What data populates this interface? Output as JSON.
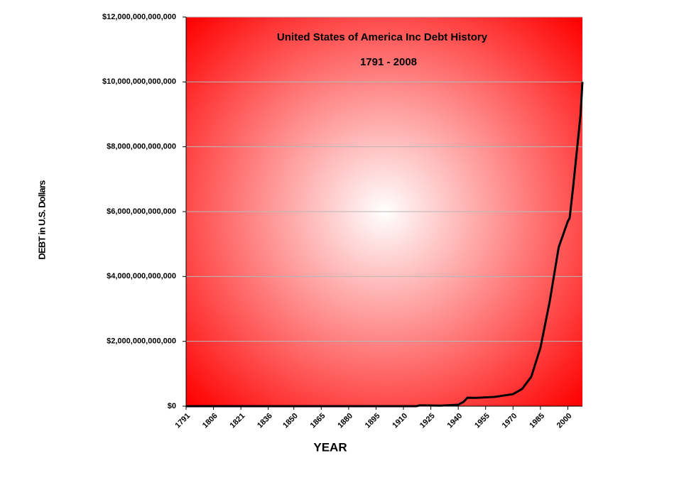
{
  "chart_data": {
    "type": "line",
    "title": "United States of America Inc Debt History",
    "subtitle": "1791 - 2008",
    "x_label": "YEAR",
    "y_label": "DEBT in U.S. Dollars",
    "x": [
      1791,
      1860,
      1900,
      1917,
      1919,
      1930,
      1940,
      1943,
      1945,
      1950,
      1960,
      1970,
      1975,
      1980,
      1985,
      1990,
      1995,
      2000,
      2001,
      2003,
      2005,
      2007,
      2008
    ],
    "series": [
      {
        "name": "Debt",
        "color": "#000000",
        "values": [
          0,
          0,
          0,
          0,
          25000000000,
          16000000000,
          43000000000,
          137000000000,
          260000000000,
          257000000000,
          286000000000,
          371000000000,
          533000000000,
          908000000000,
          1800000000000,
          3200000000000,
          4900000000000,
          5700000000000,
          5800000000000,
          6800000000000,
          7900000000000,
          9000000000000,
          10000000000000
        ]
      }
    ],
    "xlim": [
      1791,
      2008
    ],
    "xticks": [
      1791,
      1806,
      1821,
      1836,
      1850,
      1865,
      1880,
      1895,
      1910,
      1925,
      1940,
      1955,
      1970,
      1985,
      2000
    ],
    "ylim": [
      0,
      12000000000000
    ],
    "yticks": [
      {
        "value": 0,
        "label": "$0"
      },
      {
        "value": 2000000000000,
        "label": "$2,000,000,000,000"
      },
      {
        "value": 4000000000000,
        "label": "$4,000,000,000,000"
      },
      {
        "value": 6000000000000,
        "label": "$6,000,000,000,000"
      },
      {
        "value": 8000000000000,
        "label": "$8,000,000,000,000"
      },
      {
        "value": 10000000000000,
        "label": "$10,000,000,000,000"
      },
      {
        "value": 12000000000000,
        "label": "$12,000,000,000,000"
      }
    ],
    "grid": true
  }
}
